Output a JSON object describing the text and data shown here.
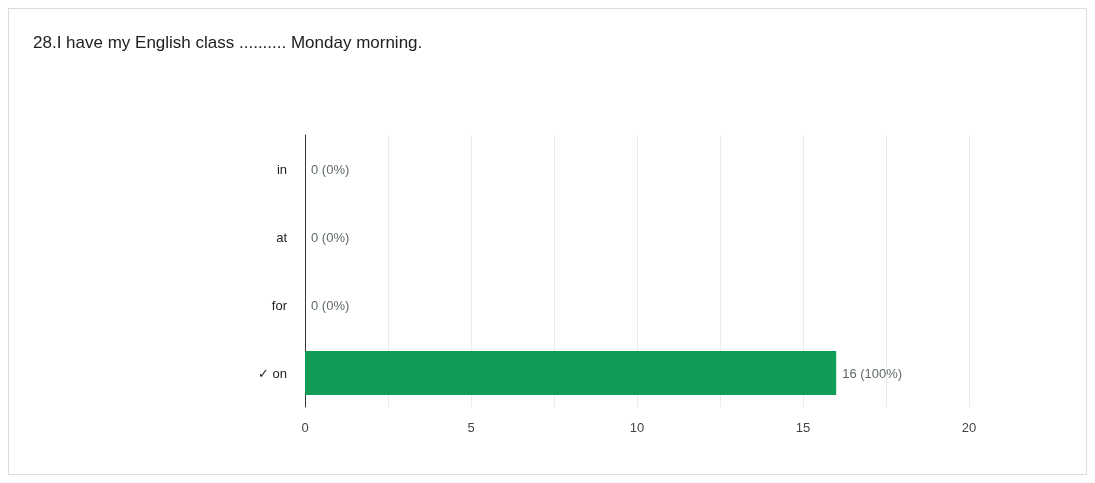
{
  "chart_data": {
    "type": "bar",
    "orientation": "horizontal",
    "title": "28.I have my English class .......... Monday morning.",
    "categories": [
      "in",
      "at",
      "for",
      "✓ on"
    ],
    "values": [
      0,
      0,
      0,
      16
    ],
    "value_labels": [
      "0 (0%)",
      "0 (0%)",
      "0 (0%)",
      "16 (100%)"
    ],
    "color": "#119d58",
    "xlim": [
      0,
      20
    ],
    "xticks": [
      0,
      {
        "value": 2.5,
        "label": null
      },
      5,
      {
        "value": 7.5,
        "label": null
      },
      10,
      {
        "value": 12.5,
        "label": null
      },
      15,
      {
        "value": 17.5,
        "label": null
      },
      20
    ],
    "grid": "x"
  }
}
